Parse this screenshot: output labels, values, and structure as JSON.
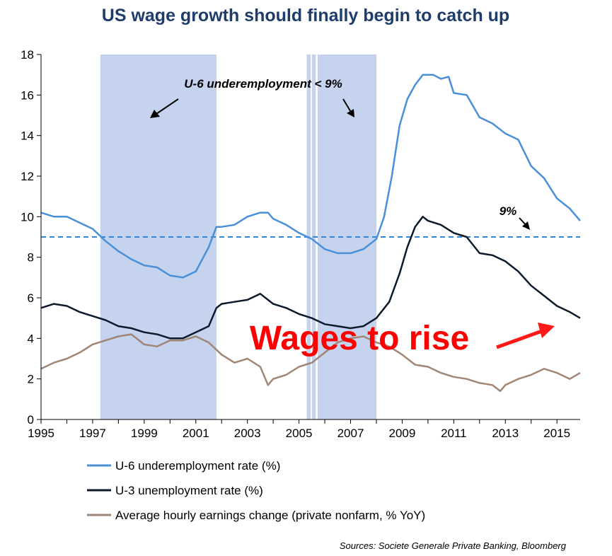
{
  "chart_data": {
    "type": "line",
    "title": "US wage growth should finally begin to catch up",
    "xlim": [
      1995,
      2015.9
    ],
    "ylim": [
      0,
      18
    ],
    "x_ticks": [
      "1995",
      "1997",
      "1999",
      "2001",
      "2003",
      "2005",
      "2007",
      "2009",
      "2011",
      "2013",
      "2015"
    ],
    "y_ticks": [
      "0",
      "2",
      "4",
      "6",
      "8",
      "10",
      "12",
      "14",
      "16",
      "18"
    ],
    "grid": false,
    "legend_position": "bottom",
    "shaded_periods": [
      {
        "start": 1997.3,
        "end": 2001.8
      },
      {
        "start": 2005.3,
        "end": 2005.45
      },
      {
        "start": 2005.5,
        "end": 2005.65
      },
      {
        "start": 2005.72,
        "end": 2008.0
      }
    ],
    "threshold": {
      "value": 9,
      "label": "9%"
    },
    "series": [
      {
        "name": "U-6 underemployment rate (%)",
        "color": "#4a90d9",
        "points": [
          [
            1995.0,
            10.2
          ],
          [
            1995.5,
            10.0
          ],
          [
            1996.0,
            10.0
          ],
          [
            1996.5,
            9.7
          ],
          [
            1997.0,
            9.4
          ],
          [
            1997.5,
            8.8
          ],
          [
            1998.0,
            8.3
          ],
          [
            1998.5,
            7.9
          ],
          [
            1999.0,
            7.6
          ],
          [
            1999.5,
            7.5
          ],
          [
            2000.0,
            7.1
          ],
          [
            2000.5,
            7.0
          ],
          [
            2001.0,
            7.3
          ],
          [
            2001.5,
            8.5
          ],
          [
            2001.8,
            9.5
          ],
          [
            2002.0,
            9.5
          ],
          [
            2002.5,
            9.6
          ],
          [
            2003.0,
            10.0
          ],
          [
            2003.5,
            10.2
          ],
          [
            2003.8,
            10.2
          ],
          [
            2004.0,
            9.9
          ],
          [
            2004.5,
            9.6
          ],
          [
            2005.0,
            9.2
          ],
          [
            2005.5,
            8.9
          ],
          [
            2006.0,
            8.4
          ],
          [
            2006.5,
            8.2
          ],
          [
            2007.0,
            8.2
          ],
          [
            2007.5,
            8.4
          ],
          [
            2008.0,
            8.9
          ],
          [
            2008.3,
            10.0
          ],
          [
            2008.6,
            12.0
          ],
          [
            2008.9,
            14.5
          ],
          [
            2009.2,
            15.8
          ],
          [
            2009.5,
            16.5
          ],
          [
            2009.8,
            17.0
          ],
          [
            2010.2,
            17.0
          ],
          [
            2010.5,
            16.8
          ],
          [
            2010.8,
            16.9
          ],
          [
            2011.0,
            16.1
          ],
          [
            2011.5,
            16.0
          ],
          [
            2012.0,
            14.9
          ],
          [
            2012.5,
            14.6
          ],
          [
            2013.0,
            14.1
          ],
          [
            2013.5,
            13.8
          ],
          [
            2014.0,
            12.5
          ],
          [
            2014.5,
            11.9
          ],
          [
            2015.0,
            10.9
          ],
          [
            2015.5,
            10.4
          ],
          [
            2015.9,
            9.8
          ]
        ]
      },
      {
        "name": "U-3 unemployment rate (%)",
        "color": "#0d1a2c",
        "points": [
          [
            1995.0,
            5.5
          ],
          [
            1995.5,
            5.7
          ],
          [
            1996.0,
            5.6
          ],
          [
            1996.5,
            5.3
          ],
          [
            1997.0,
            5.1
          ],
          [
            1997.5,
            4.9
          ],
          [
            1998.0,
            4.6
          ],
          [
            1998.5,
            4.5
          ],
          [
            1999.0,
            4.3
          ],
          [
            1999.5,
            4.2
          ],
          [
            2000.0,
            4.0
          ],
          [
            2000.5,
            4.0
          ],
          [
            2001.0,
            4.3
          ],
          [
            2001.5,
            4.6
          ],
          [
            2001.8,
            5.5
          ],
          [
            2002.0,
            5.7
          ],
          [
            2002.5,
            5.8
          ],
          [
            2003.0,
            5.9
          ],
          [
            2003.5,
            6.2
          ],
          [
            2004.0,
            5.7
          ],
          [
            2004.5,
            5.5
          ],
          [
            2005.0,
            5.2
          ],
          [
            2005.5,
            5.0
          ],
          [
            2006.0,
            4.7
          ],
          [
            2006.5,
            4.6
          ],
          [
            2007.0,
            4.5
          ],
          [
            2007.5,
            4.6
          ],
          [
            2008.0,
            5.0
          ],
          [
            2008.5,
            5.8
          ],
          [
            2008.9,
            7.2
          ],
          [
            2009.2,
            8.5
          ],
          [
            2009.5,
            9.5
          ],
          [
            2009.8,
            10.0
          ],
          [
            2010.0,
            9.8
          ],
          [
            2010.5,
            9.6
          ],
          [
            2011.0,
            9.2
          ],
          [
            2011.5,
            9.0
          ],
          [
            2012.0,
            8.2
          ],
          [
            2012.5,
            8.1
          ],
          [
            2013.0,
            7.8
          ],
          [
            2013.5,
            7.3
          ],
          [
            2014.0,
            6.6
          ],
          [
            2014.5,
            6.1
          ],
          [
            2015.0,
            5.6
          ],
          [
            2015.5,
            5.3
          ],
          [
            2015.9,
            5.0
          ]
        ]
      },
      {
        "name": "Average hourly earnings change (private nonfarm, % YoY)",
        "color": "#a08676",
        "points": [
          [
            1995.0,
            2.5
          ],
          [
            1995.5,
            2.8
          ],
          [
            1996.0,
            3.0
          ],
          [
            1996.5,
            3.3
          ],
          [
            1997.0,
            3.7
          ],
          [
            1997.5,
            3.9
          ],
          [
            1998.0,
            4.1
          ],
          [
            1998.5,
            4.2
          ],
          [
            1999.0,
            3.7
          ],
          [
            1999.5,
            3.6
          ],
          [
            2000.0,
            3.9
          ],
          [
            2000.5,
            3.9
          ],
          [
            2001.0,
            4.1
          ],
          [
            2001.5,
            3.8
          ],
          [
            2002.0,
            3.2
          ],
          [
            2002.5,
            2.8
          ],
          [
            2003.0,
            3.0
          ],
          [
            2003.5,
            2.6
          ],
          [
            2003.8,
            1.7
          ],
          [
            2004.0,
            2.0
          ],
          [
            2004.5,
            2.2
          ],
          [
            2005.0,
            2.6
          ],
          [
            2005.5,
            2.8
          ],
          [
            2006.0,
            3.3
          ],
          [
            2006.5,
            3.8
          ],
          [
            2007.0,
            4.0
          ],
          [
            2007.5,
            4.1
          ],
          [
            2008.0,
            3.8
          ],
          [
            2008.5,
            3.6
          ],
          [
            2009.0,
            3.2
          ],
          [
            2009.5,
            2.7
          ],
          [
            2010.0,
            2.6
          ],
          [
            2010.5,
            2.3
          ],
          [
            2011.0,
            2.1
          ],
          [
            2011.5,
            2.0
          ],
          [
            2012.0,
            1.8
          ],
          [
            2012.5,
            1.7
          ],
          [
            2012.8,
            1.4
          ],
          [
            2013.0,
            1.7
          ],
          [
            2013.5,
            2.0
          ],
          [
            2014.0,
            2.2
          ],
          [
            2014.5,
            2.5
          ],
          [
            2015.0,
            2.3
          ],
          [
            2015.5,
            2.0
          ],
          [
            2015.9,
            2.3
          ]
        ]
      }
    ],
    "annotations": {
      "u6_label": "U-6 underemployment < 9%",
      "big_label": "Wages to rise"
    },
    "source": "Sources: Societe Generale Private Banking, Bloomberg"
  }
}
